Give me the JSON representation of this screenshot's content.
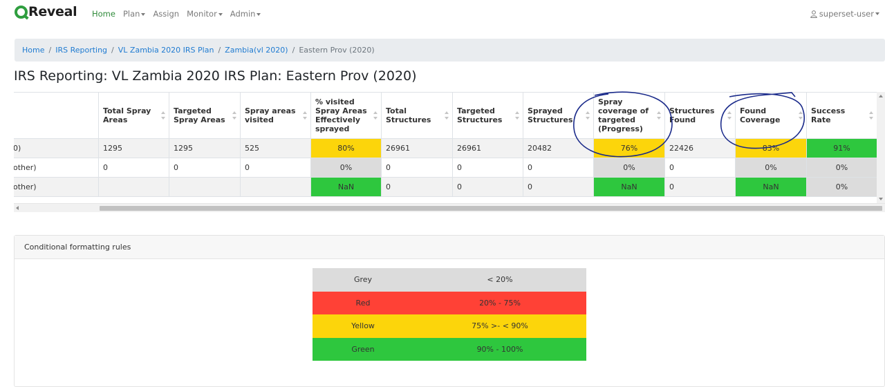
{
  "brand": {
    "name": "Reveal",
    "color": "#2f9e3f"
  },
  "nav": {
    "home": "Home",
    "plan": "Plan",
    "assign": "Assign",
    "monitor": "Monitor",
    "admin": "Admin",
    "user": "superset-user"
  },
  "breadcrumb": {
    "items": [
      "Home",
      "IRS Reporting",
      "VL Zambia 2020 IRS Plan",
      "Zambia(vl 2020)"
    ],
    "current": "Eastern Prov (2020)"
  },
  "page_title": "IRS Reporting: VL Zambia 2020 IRS Plan: Eastern Prov (2020)",
  "table": {
    "headers": [
      "",
      "Total Spray Areas",
      "Targeted Spray Areas",
      "Spray areas visited",
      "% visited Spray Areas Effectively sprayed",
      "Total Structures",
      "Targeted Structures",
      "Sprayed Structures",
      "Spray coverage of targeted (Progress)",
      "Structures Found",
      "Found Coverage",
      "Success Rate"
    ],
    "rows": [
      [
        "0)",
        "1295",
        "1295",
        "525",
        "80%",
        "26961",
        "26961",
        "20482",
        "76%",
        "22426",
        "83%",
        "91%"
      ],
      [
        "other)",
        "0",
        "0",
        "0",
        "0%",
        "0",
        "0",
        "0",
        "0%",
        "0",
        "0%",
        "0%"
      ],
      [
        "other)",
        "",
        "",
        "",
        "NaN",
        "0",
        "0",
        "0",
        "NaN",
        "0",
        "NaN",
        "0%"
      ]
    ]
  },
  "rules_card": {
    "title": "Conditional formatting rules",
    "rules": [
      {
        "name": "Grey",
        "range": "< 20%",
        "color": "#dcdcdc"
      },
      {
        "name": "Red",
        "range": "20% - 75%",
        "color": "#ff4136"
      },
      {
        "name": "Yellow",
        "range": "75% >- < 90%",
        "color": "#fcd50b"
      },
      {
        "name": "Green",
        "range": "90% - 100%",
        "color": "#2ec73e"
      }
    ]
  }
}
